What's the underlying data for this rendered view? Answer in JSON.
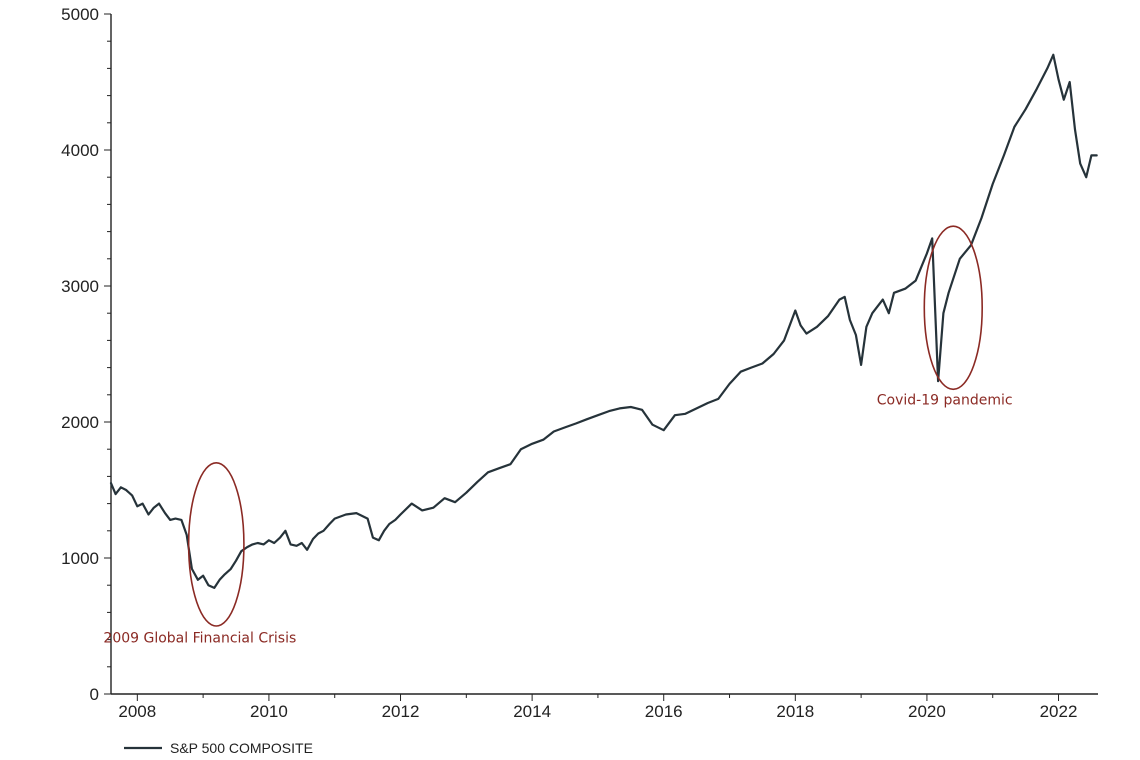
{
  "chart_data": {
    "type": "line",
    "title": "",
    "xlabel": "",
    "ylabel": "",
    "xlim": [
      2007.6,
      2022.6
    ],
    "ylim": [
      0,
      5000
    ],
    "y_ticks": [
      0,
      1000,
      2000,
      3000,
      4000,
      5000
    ],
    "y_tick_labels": [
      "0",
      "1000",
      "2000",
      "3000",
      "4000",
      "5000"
    ],
    "x_ticks": [
      2008,
      2010,
      2012,
      2014,
      2016,
      2018,
      2020,
      2022
    ],
    "x_tick_labels": [
      "2008",
      "2010",
      "2012",
      "2014",
      "2016",
      "2018",
      "2020",
      "2022"
    ],
    "grid": false,
    "legend_position": "bottom-left",
    "series": [
      {
        "name": "S&P 500 COMPOSITE",
        "color": "#26333a",
        "x": [
          2007.6,
          2007.67,
          2007.75,
          2007.83,
          2007.92,
          2008.0,
          2008.08,
          2008.17,
          2008.25,
          2008.33,
          2008.42,
          2008.5,
          2008.58,
          2008.67,
          2008.75,
          2008.83,
          2008.92,
          2009.0,
          2009.08,
          2009.17,
          2009.25,
          2009.33,
          2009.42,
          2009.5,
          2009.58,
          2009.67,
          2009.75,
          2009.83,
          2009.92,
          2010.0,
          2010.08,
          2010.17,
          2010.25,
          2010.33,
          2010.42,
          2010.5,
          2010.58,
          2010.67,
          2010.75,
          2010.83,
          2010.92,
          2011.0,
          2011.17,
          2011.33,
          2011.5,
          2011.58,
          2011.67,
          2011.75,
          2011.83,
          2011.92,
          2012.0,
          2012.17,
          2012.33,
          2012.5,
          2012.67,
          2012.83,
          2013.0,
          2013.17,
          2013.33,
          2013.5,
          2013.67,
          2013.83,
          2014.0,
          2014.17,
          2014.33,
          2014.5,
          2014.67,
          2014.83,
          2015.0,
          2015.17,
          2015.33,
          2015.5,
          2015.67,
          2015.83,
          2016.0,
          2016.17,
          2016.33,
          2016.5,
          2016.67,
          2016.83,
          2017.0,
          2017.17,
          2017.33,
          2017.5,
          2017.67,
          2017.83,
          2018.0,
          2018.08,
          2018.17,
          2018.33,
          2018.5,
          2018.67,
          2018.75,
          2018.83,
          2018.92,
          2019.0,
          2019.08,
          2019.17,
          2019.33,
          2019.42,
          2019.5,
          2019.67,
          2019.83,
          2020.0,
          2020.08,
          2020.17,
          2020.25,
          2020.33,
          2020.5,
          2020.67,
          2020.83,
          2021.0,
          2021.17,
          2021.33,
          2021.5,
          2021.67,
          2021.83,
          2021.92,
          2022.0,
          2022.08,
          2022.17,
          2022.25,
          2022.33,
          2022.42,
          2022.5,
          2022.58
        ],
        "y": [
          1550,
          1470,
          1520,
          1500,
          1460,
          1380,
          1400,
          1320,
          1370,
          1400,
          1330,
          1280,
          1290,
          1280,
          1170,
          920,
          840,
          870,
          800,
          780,
          840,
          880,
          920,
          980,
          1050,
          1080,
          1100,
          1110,
          1100,
          1130,
          1110,
          1150,
          1200,
          1100,
          1090,
          1110,
          1060,
          1140,
          1180,
          1200,
          1250,
          1290,
          1320,
          1330,
          1290,
          1150,
          1130,
          1200,
          1250,
          1280,
          1320,
          1400,
          1350,
          1370,
          1440,
          1410,
          1480,
          1560,
          1630,
          1660,
          1690,
          1800,
          1840,
          1870,
          1930,
          1960,
          1990,
          2020,
          2050,
          2080,
          2100,
          2110,
          2090,
          1980,
          1940,
          2050,
          2060,
          2100,
          2140,
          2170,
          2280,
          2370,
          2400,
          2430,
          2500,
          2600,
          2820,
          2710,
          2650,
          2700,
          2780,
          2900,
          2920,
          2750,
          2640,
          2420,
          2700,
          2800,
          2900,
          2800,
          2950,
          2980,
          3040,
          3240,
          3350,
          2300,
          2800,
          2950,
          3200,
          3300,
          3500,
          3750,
          3960,
          4170,
          4300,
          4450,
          4600,
          4700,
          4520,
          4370,
          4500,
          4150,
          3900,
          3800,
          3960,
          3960
        ]
      }
    ],
    "annotations": [
      {
        "text": "2009 Global Financial Crisis",
        "x": 2009.2,
        "y": 1100,
        "rx": 0.42,
        "ry": 600,
        "label_x": 2008.95,
        "label_y": 380
      },
      {
        "text": "Covid-19 pandemic",
        "x": 2020.4,
        "y": 2840,
        "rx": 0.44,
        "ry": 600,
        "label_x": 2020.27,
        "label_y": 2130
      }
    ]
  }
}
